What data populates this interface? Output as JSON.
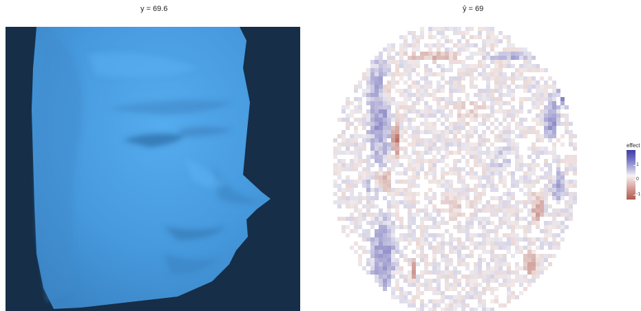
{
  "panels": {
    "left": {
      "title": "y = 69.6",
      "background": "#162e48",
      "face_color": "#4aa0e6"
    },
    "right": {
      "title": "ŷ = 69"
    }
  },
  "legend": {
    "title": "effect",
    "ticks": [
      "1",
      "0",
      "-1"
    ],
    "colors": {
      "positive": "#3d3da8",
      "zero": "#f6f3f3",
      "negative": "#b05a50"
    }
  },
  "chart_data": [
    {
      "type": "heatmap",
      "title": "y = 69.6",
      "xlabel": "",
      "ylabel": "",
      "description_of_values": "grayscale face image rendered in blue on dark background"
    },
    {
      "type": "heatmap",
      "title": "ŷ = 69",
      "xlabel": "",
      "ylabel": "",
      "legend_title": "effect",
      "colorbar_ticks": [
        1,
        0,
        -1
      ],
      "colorscale": [
        "#b05a50",
        "#f6f3f3",
        "#3d3da8"
      ]
    }
  ]
}
